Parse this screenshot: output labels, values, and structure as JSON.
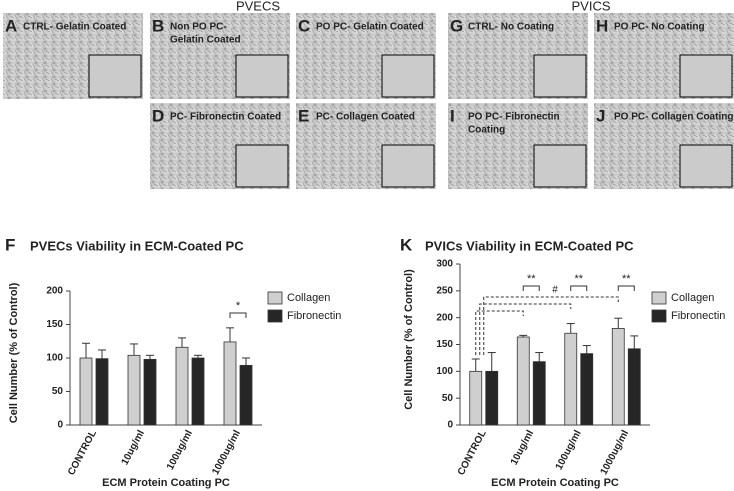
{
  "headers": [
    "PVECS",
    "PVICS"
  ],
  "panels": [
    {
      "letter": "A",
      "caption": [
        "CTRL- Gelatin Coated"
      ]
    },
    {
      "letter": "B",
      "caption": [
        "Non PO PC-",
        "Gelatin Coated"
      ]
    },
    {
      "letter": "C",
      "caption": [
        "PO PC- Gelatin Coated"
      ]
    },
    {
      "letter": "D",
      "caption": [
        "PC- Fibronectin Coated"
      ]
    },
    {
      "letter": "E",
      "caption": [
        "PC- Collagen Coated"
      ]
    },
    {
      "letter": "G",
      "caption": [
        "CTRL- No Coating"
      ]
    },
    {
      "letter": "H",
      "caption": [
        "PO PC- No Coating"
      ]
    },
    {
      "letter": "I",
      "caption": [
        "PO PC- Fibronectin",
        "Coating"
      ]
    },
    {
      "letter": "J",
      "caption": [
        "PO PC- Collagen Coating"
      ]
    }
  ],
  "chart_data": [
    {
      "type": "bar",
      "panel": "F",
      "title": "PVECs Viability in ECM-Coated PC",
      "x_label": "ECM Protein Coating PC",
      "y_label": "Cell Number (% of Control)",
      "categories": [
        "CONTROL",
        "10ug/ml",
        "100ug/ml",
        "1000ug/ml"
      ],
      "series": [
        {
          "name": "Collagen",
          "color": "#cfcfcf",
          "values": [
            100,
            104,
            116,
            124
          ],
          "errors": [
            22,
            17,
            14,
            21
          ]
        },
        {
          "name": "Fibronectin",
          "color": "#262626",
          "values": [
            99,
            98,
            100,
            89
          ],
          "errors": [
            13,
            6,
            4,
            11
          ]
        }
      ],
      "ylim": [
        0,
        200
      ],
      "yticks": [
        0,
        50,
        100,
        150,
        200
      ],
      "annotations": [
        {
          "label": "*",
          "category": "1000ug/ml"
        }
      ]
    },
    {
      "type": "bar",
      "panel": "K",
      "title": "PVICs Viability in ECM-Coated PC",
      "x_label": "ECM Protein Coating PC",
      "y_label": "Cell Number (% of Control)",
      "categories": [
        "CONTROL",
        "10ug/ml",
        "100ug/ml",
        "1000ug/ml"
      ],
      "series": [
        {
          "name": "Collagen",
          "color": "#cfcfcf",
          "values": [
            100,
            164,
            171,
            180
          ],
          "errors": [
            23,
            3,
            18,
            19
          ]
        },
        {
          "name": "Fibronectin",
          "color": "#262626",
          "values": [
            100,
            118,
            133,
            142
          ],
          "errors": [
            35,
            17,
            15,
            24
          ]
        }
      ],
      "ylim": [
        0,
        300
      ],
      "yticks": [
        0,
        50,
        100,
        150,
        200,
        250,
        300
      ],
      "annotations": [
        {
          "label": "**",
          "category": "10ug/ml"
        },
        {
          "label": "**",
          "category": "100ug/ml"
        },
        {
          "label": "**",
          "category": "1000ug/ml"
        },
        {
          "label": "#",
          "category": "CONTROL"
        }
      ]
    }
  ]
}
